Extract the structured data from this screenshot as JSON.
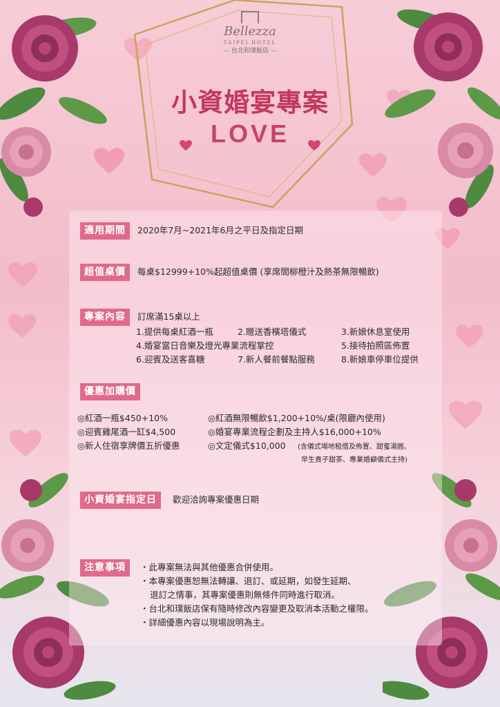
{
  "logo": {
    "brand": "Bellezza",
    "sub": "TAIPEI HOTEL",
    "chinese": "— 台北和璞飯店 —"
  },
  "title": "小資婚宴專案",
  "love": "LOVE",
  "sections": {
    "period": {
      "label": "適用期間",
      "text": "2020年7月~2021年6月之平日及指定日期"
    },
    "price": {
      "label": "超值桌價",
      "text": "每桌$12999+10%起超值桌價 (享席間柳橙汁及熱茶無限暢飲)"
    },
    "content": {
      "label": "專案內容",
      "intro": "訂席滿15桌以上",
      "items": [
        "1.提供每桌紅酒一瓶",
        "2.贈送香檳塔儀式",
        "3.新娘休息室使用",
        "4.婚宴當日音樂及燈光專業流程掌控",
        "5.接待拍照區佈置",
        "6.迎賓及送客喜糖",
        "7.新人餐前餐點服務",
        "8.新娘車停車位提供"
      ]
    },
    "addon": {
      "label": "優惠加購價",
      "items": [
        "◎紅酒一瓶$450+10%",
        "◎紅酒無限暢飲$1,200+10%/桌(限廳內使用)",
        "◎迎賓雞尾酒一缸$4,500",
        "◎婚宴專業流程企劃及主持人$16,000+10%",
        "◎新人住宿享牌價五折優惠",
        "◎文定儀式$10,000",
        "(含儀式場地租借及佈置、甜蜜湯圓、",
        "早生貴子甜茶、專業婚顧儀式主持)"
      ]
    },
    "dates": {
      "label": "小資婚宴指定日",
      "text": "歡迎洽詢專案優惠日期"
    },
    "notes": {
      "label": "注意事項",
      "items": [
        "・此專案無法與其他優惠合併使用。",
        "・本專案優惠恕無法轉讓、退訂、或延期，如發生延期、",
        "退訂之情事，其專案優惠則無條件同時進行取消。",
        "・台北和璞飯店保有隨時修改內容變更及取消本活動之權限。",
        "・詳細優惠內容以現場說明為主。"
      ]
    }
  },
  "colors": {
    "accent": "#e06a8a",
    "title": "#c2385d",
    "rose_dark": "#a8396b",
    "rose_light": "#d98aa5",
    "leaf": "#4e8a3f",
    "gold": "#c9a35a"
  }
}
